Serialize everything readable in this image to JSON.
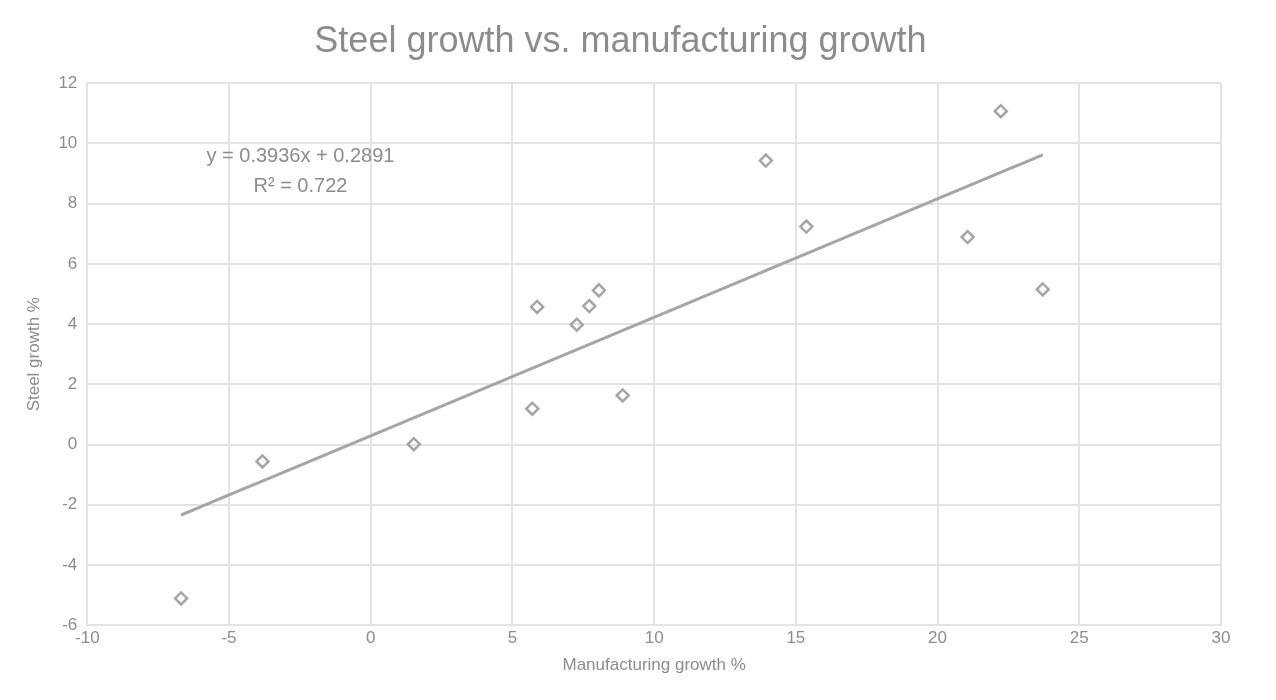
{
  "chart_data": {
    "type": "scatter",
    "title": "Steel growth vs. manufacturing growth",
    "xlabel": "Manufacturing growth %",
    "ylabel": "Steel growth %",
    "xlim": [
      -10,
      30
    ],
    "xticks": [
      -10,
      -5,
      0,
      5,
      10,
      15,
      20,
      25,
      30
    ],
    "ylim": [
      -6,
      12
    ],
    "yticks": [
      -6,
      -4,
      -2,
      0,
      2,
      4,
      6,
      8,
      10,
      12
    ],
    "grid": true,
    "legend": false,
    "marker": "diamond",
    "series": [
      {
        "type": "scatter",
        "color": "#a5a5a5",
        "x": [
          -6.69,
          -3.82,
          1.52,
          5.7,
          5.87,
          7.27,
          7.71,
          8.05,
          8.89,
          13.94,
          15.37,
          21.06,
          22.23,
          23.71
        ],
        "values": [
          -5.11,
          -0.56,
          0.01,
          1.19,
          4.57,
          3.98,
          4.6,
          5.12,
          1.63,
          9.43,
          7.24,
          6.89,
          11.07,
          5.15
        ]
      },
      {
        "type": "line",
        "color": "#a5a5a5",
        "marker": "none",
        "line_style": "solid",
        "x": [
          -6.69,
          23.71
        ],
        "values": [
          -2.34,
          9.62
        ]
      }
    ],
    "annotations": [
      "y = 0.3936x + 0.2891",
      "R² = 0.722"
    ]
  }
}
